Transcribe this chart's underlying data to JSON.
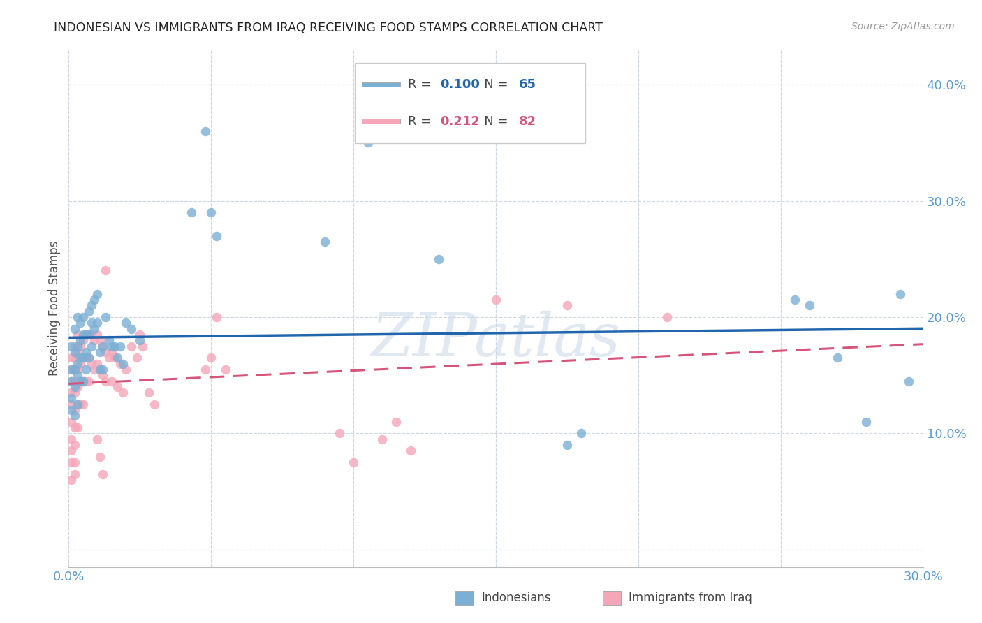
{
  "title": "INDONESIAN VS IMMIGRANTS FROM IRAQ RECEIVING FOOD STAMPS CORRELATION CHART",
  "source": "Source: ZipAtlas.com",
  "ylabel": "Receiving Food Stamps",
  "xlim": [
    0.0,
    0.3
  ],
  "ylim": [
    -0.015,
    0.43
  ],
  "blue_color": "#7bafd4",
  "pink_color": "#f4a7b9",
  "blue_line_color": "#2166ac",
  "pink_line_color": "#d6547a",
  "axis_label_color": "#5b9bd5",
  "background_color": "#ffffff",
  "grid_color": "#d0d8e4",
  "watermark": "ZIPatlas",
  "legend1_R": "0.100",
  "legend1_N": "65",
  "legend2_R": "0.212",
  "legend2_N": "82",
  "indonesians_x": [
    0.001,
    0.001,
    0.001,
    0.001,
    0.001,
    0.002,
    0.002,
    0.002,
    0.002,
    0.002,
    0.003,
    0.003,
    0.003,
    0.003,
    0.003,
    0.004,
    0.004,
    0.004,
    0.004,
    0.005,
    0.005,
    0.005,
    0.005,
    0.006,
    0.006,
    0.006,
    0.007,
    0.007,
    0.007,
    0.008,
    0.008,
    0.008,
    0.009,
    0.009,
    0.01,
    0.01,
    0.011,
    0.011,
    0.012,
    0.012,
    0.013,
    0.014,
    0.015,
    0.016,
    0.017,
    0.018,
    0.019,
    0.02,
    0.022,
    0.025,
    0.043,
    0.048,
    0.05,
    0.052,
    0.09,
    0.105,
    0.13,
    0.175,
    0.18,
    0.255,
    0.26,
    0.27,
    0.28,
    0.292,
    0.295
  ],
  "indonesians_y": [
    0.175,
    0.155,
    0.145,
    0.13,
    0.12,
    0.19,
    0.17,
    0.155,
    0.14,
    0.115,
    0.2,
    0.175,
    0.16,
    0.15,
    0.125,
    0.195,
    0.18,
    0.165,
    0.145,
    0.2,
    0.185,
    0.165,
    0.145,
    0.185,
    0.17,
    0.155,
    0.205,
    0.185,
    0.165,
    0.21,
    0.195,
    0.175,
    0.215,
    0.19,
    0.22,
    0.195,
    0.17,
    0.155,
    0.175,
    0.155,
    0.2,
    0.18,
    0.175,
    0.175,
    0.165,
    0.175,
    0.16,
    0.195,
    0.19,
    0.18,
    0.29,
    0.36,
    0.29,
    0.27,
    0.265,
    0.35,
    0.25,
    0.09,
    0.1,
    0.215,
    0.21,
    0.165,
    0.11,
    0.22,
    0.145
  ],
  "iraq_x": [
    0.001,
    0.001,
    0.001,
    0.001,
    0.001,
    0.001,
    0.001,
    0.001,
    0.001,
    0.001,
    0.002,
    0.002,
    0.002,
    0.002,
    0.002,
    0.002,
    0.002,
    0.002,
    0.002,
    0.002,
    0.003,
    0.003,
    0.003,
    0.003,
    0.003,
    0.003,
    0.004,
    0.004,
    0.004,
    0.004,
    0.005,
    0.005,
    0.005,
    0.005,
    0.006,
    0.006,
    0.006,
    0.007,
    0.007,
    0.007,
    0.008,
    0.008,
    0.009,
    0.009,
    0.01,
    0.01,
    0.011,
    0.011,
    0.012,
    0.012,
    0.013,
    0.013,
    0.014,
    0.015,
    0.015,
    0.016,
    0.017,
    0.018,
    0.019,
    0.02,
    0.022,
    0.024,
    0.025,
    0.026,
    0.028,
    0.03,
    0.048,
    0.05,
    0.052,
    0.055,
    0.095,
    0.1,
    0.11,
    0.115,
    0.12,
    0.15,
    0.175,
    0.21,
    0.01,
    0.011,
    0.012,
    0.013
  ],
  "iraq_y": [
    0.165,
    0.155,
    0.145,
    0.135,
    0.125,
    0.11,
    0.095,
    0.085,
    0.075,
    0.06,
    0.175,
    0.165,
    0.155,
    0.145,
    0.135,
    0.12,
    0.105,
    0.09,
    0.075,
    0.065,
    0.185,
    0.17,
    0.155,
    0.14,
    0.125,
    0.105,
    0.175,
    0.16,
    0.145,
    0.125,
    0.18,
    0.165,
    0.145,
    0.125,
    0.185,
    0.165,
    0.145,
    0.185,
    0.165,
    0.145,
    0.185,
    0.16,
    0.18,
    0.155,
    0.185,
    0.16,
    0.18,
    0.155,
    0.175,
    0.15,
    0.17,
    0.145,
    0.165,
    0.17,
    0.145,
    0.165,
    0.14,
    0.16,
    0.135,
    0.155,
    0.175,
    0.165,
    0.185,
    0.175,
    0.135,
    0.125,
    0.155,
    0.165,
    0.2,
    0.155,
    0.1,
    0.075,
    0.095,
    0.11,
    0.085,
    0.215,
    0.21,
    0.2,
    0.095,
    0.08,
    0.065,
    0.24
  ]
}
